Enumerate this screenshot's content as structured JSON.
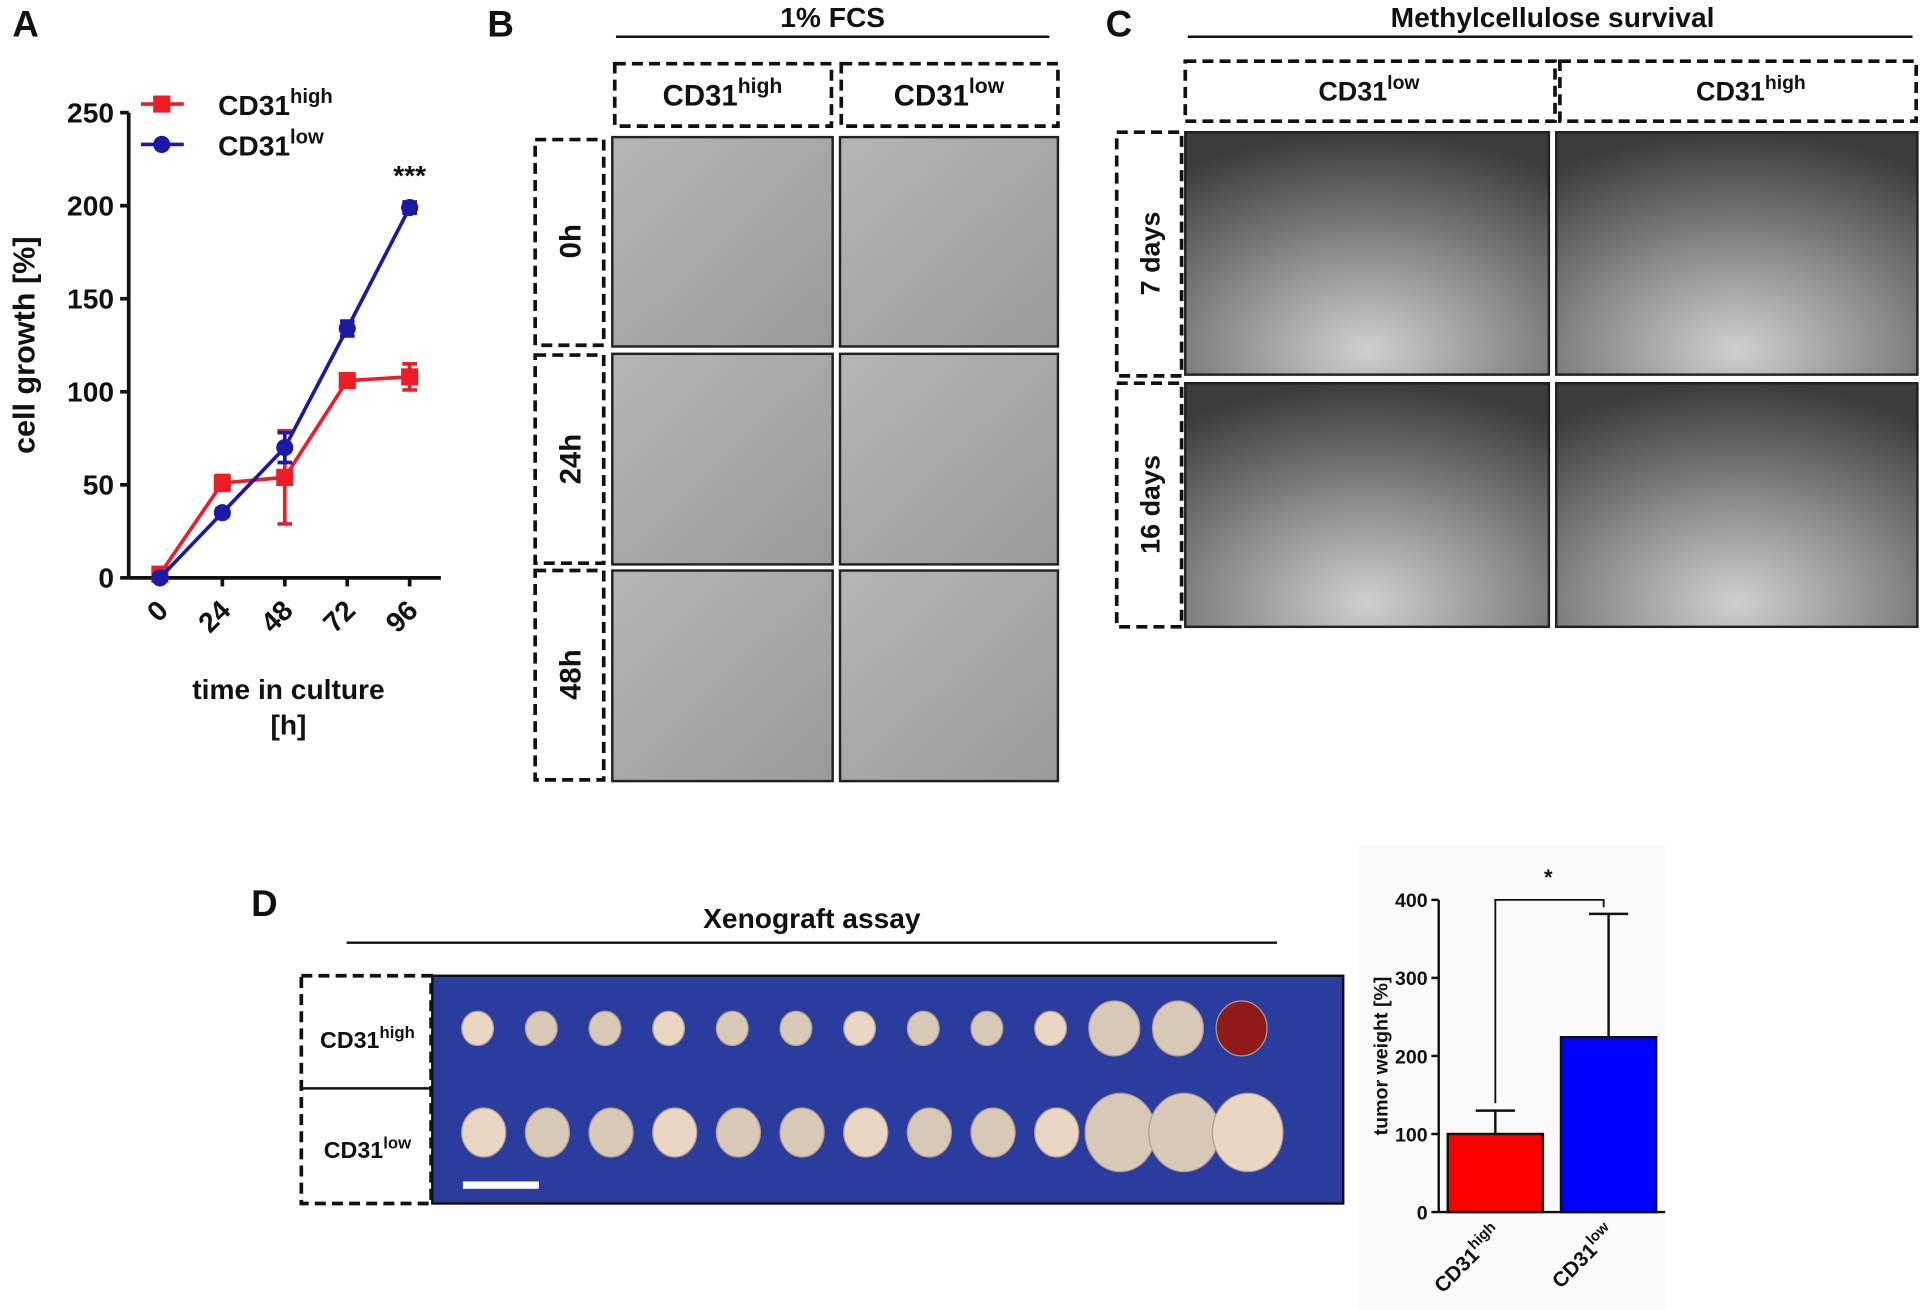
{
  "chart_data": [
    {
      "type": "line",
      "ylabel": "cell growth [%]",
      "xlabel": [
        "time in culture",
        "[h]"
      ],
      "x": [
        0,
        24,
        48,
        72,
        96
      ],
      "xlim": [
        -12,
        108
      ],
      "xticks": [
        0,
        24,
        48,
        72,
        96
      ],
      "ylim": [
        0,
        250
      ],
      "yticks": [
        0,
        50,
        100,
        150,
        200,
        250
      ],
      "series": [
        {
          "name": {
            "text": "CD31",
            "sup": "high"
          },
          "color": "#ee1c25",
          "marker": "square",
          "values": [
            2,
            51,
            54,
            106,
            108
          ],
          "errors": [
            1,
            4,
            25,
            3,
            7
          ]
        },
        {
          "name": {
            "text": "CD31",
            "sup": "low"
          },
          "color": "#1a1aa6",
          "marker": "circle",
          "values": [
            0,
            35,
            70,
            134,
            199
          ],
          "errors": [
            1,
            2,
            8,
            4,
            3
          ]
        }
      ],
      "legend": "upper left",
      "annotation": "***"
    },
    {
      "type": "bar",
      "ylabel": "tumor weight [%]",
      "categories": [
        {
          "text": "CD31",
          "sup": "high"
        },
        {
          "text": "CD31",
          "sup": "low"
        }
      ],
      "values": [
        100,
        224
      ],
      "errors": [
        30,
        158
      ],
      "colors": [
        "#ff0000",
        "#0000ff"
      ],
      "ylim": [
        0,
        400
      ],
      "yticks": [
        0,
        100,
        200,
        300,
        400
      ],
      "annotation": "*"
    }
  ],
  "panel_labels": [
    "A",
    "B",
    "C",
    "D"
  ],
  "panel_b": {
    "title": "1% FCS",
    "columns": [
      {
        "text": "CD31",
        "sup": "high"
      },
      {
        "text": "CD31",
        "sup": "low"
      }
    ],
    "rows": [
      "0h",
      "24h",
      "48h"
    ]
  },
  "panel_c": {
    "title": "Methylcellulose survival",
    "columns": [
      {
        "text": "CD31",
        "sup": "low"
      },
      {
        "text": "CD31",
        "sup": "high"
      }
    ],
    "rows": [
      "7 days",
      "16 days"
    ]
  },
  "panel_d": {
    "title": "Xenograft assay",
    "rows": [
      {
        "text": "CD31",
        "sup": "high"
      },
      {
        "text": "CD31",
        "sup": "low"
      }
    ]
  }
}
